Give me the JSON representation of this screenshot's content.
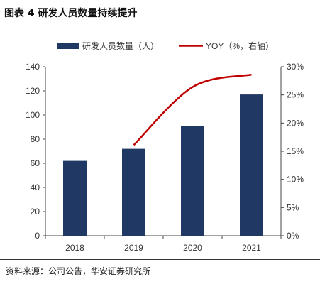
{
  "title": "图表 4  研发人员数量持续提升",
  "source": "资料来源：公司公告，华安证券研究所",
  "chart_data": {
    "type": "bar+line",
    "categories": [
      "2018",
      "2019",
      "2020",
      "2021"
    ],
    "series": [
      {
        "name": "研发人员数量（人）",
        "type": "bar",
        "axis": "left",
        "values": [
          62,
          72,
          91,
          117
        ],
        "color": "#1f3864"
      },
      {
        "name": "YOY（%，右轴）",
        "type": "line",
        "axis": "right",
        "values": [
          null,
          16.1,
          26.4,
          28.6
        ],
        "color": "#c00000"
      }
    ],
    "ylim_left": [
      0,
      140
    ],
    "yticks_left": [
      0,
      20,
      40,
      60,
      80,
      100,
      120,
      140
    ],
    "ylim_right": [
      0,
      30
    ],
    "yticks_right": [
      "0%",
      "5%",
      "10%",
      "15%",
      "20%",
      "25%",
      "30%"
    ],
    "legend": "top"
  }
}
